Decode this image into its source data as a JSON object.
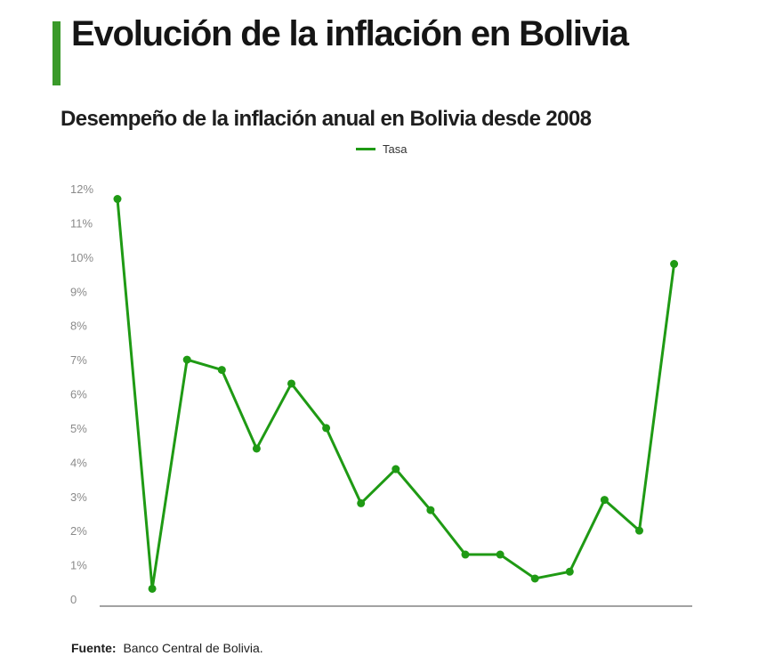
{
  "header": {
    "title": "Evolución de la inflación en Bolivia",
    "subtitle": "Desempeño de la inflación anual en Bolivia desde 2008"
  },
  "colors": {
    "accent": "#3a9a2a",
    "series": "#1f9a14"
  },
  "chart_data": {
    "type": "line",
    "series": [
      {
        "name": "Tasa",
        "values": [
          11.7,
          0.3,
          7.0,
          6.7,
          4.4,
          6.3,
          5.0,
          2.8,
          3.8,
          2.6,
          1.3,
          1.3,
          0.6,
          0.8,
          2.9,
          2.0,
          9.8
        ]
      }
    ],
    "y_ticks": [
      "0",
      "1%",
      "2%",
      "3%",
      "4%",
      "5%",
      "6%",
      "7%",
      "8%",
      "9%",
      "10%",
      "11%",
      "12%"
    ],
    "ylim": [
      0,
      12
    ],
    "grid": false,
    "legend_position": "top-center"
  },
  "footer": {
    "source_label": "Fuente:",
    "source_text": "Banco Central de Bolivia."
  }
}
